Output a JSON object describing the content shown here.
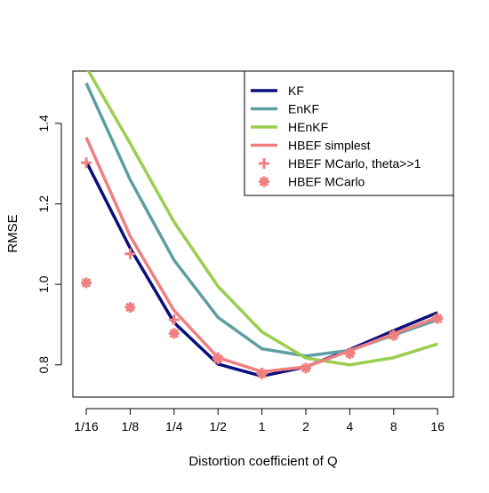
{
  "chart_data": {
    "type": "line",
    "title": "",
    "xlabel": "Distortion coefficient of Q",
    "ylabel": "RMSE",
    "categories": [
      "1/16",
      "1/8",
      "1/4",
      "1/2",
      "1",
      "2",
      "4",
      "8",
      "16"
    ],
    "x_scale": "log2",
    "ylim": [
      0.72,
      1.53
    ],
    "yticks": [
      "0.8",
      "1.0",
      "1.2",
      "1.4"
    ],
    "ytick_values": [
      0.8,
      1.0,
      1.2,
      1.4
    ],
    "grid": false,
    "legend_position": "top-right",
    "series": [
      {
        "name": "KF",
        "kind": "line",
        "color": "#0b0f7d",
        "values": [
          1.305,
          1.09,
          0.905,
          0.802,
          0.772,
          0.795,
          0.838,
          0.885,
          0.93
        ]
      },
      {
        "name": "EnKF",
        "kind": "line",
        "color": "#5f9ea0",
        "values": [
          1.5,
          1.26,
          1.06,
          0.918,
          0.84,
          0.822,
          0.836,
          0.874,
          0.912
        ]
      },
      {
        "name": "HEnKF",
        "kind": "line",
        "color": "#9acd50",
        "values": [
          1.54,
          1.35,
          1.155,
          0.995,
          0.882,
          0.817,
          0.8,
          0.818,
          0.852
        ]
      },
      {
        "name": "HBEF simplest",
        "kind": "line",
        "color": "#f08080",
        "values": [
          1.365,
          1.12,
          0.935,
          0.818,
          0.783,
          0.795,
          0.835,
          0.877,
          0.918
        ]
      },
      {
        "name": "HBEF MCarlo, theta>>1",
        "kind": "plus",
        "color": "#f08080",
        "values": [
          1.302,
          1.076,
          0.912,
          0.818,
          0.78,
          0.792,
          0.83,
          0.874,
          0.916
        ]
      },
      {
        "name": "HBEF MCarlo",
        "kind": "asterisk",
        "color": "#f08080",
        "values": [
          1.004,
          0.943,
          0.878,
          0.815,
          0.778,
          0.792,
          0.828,
          0.873,
          0.915
        ]
      }
    ]
  }
}
